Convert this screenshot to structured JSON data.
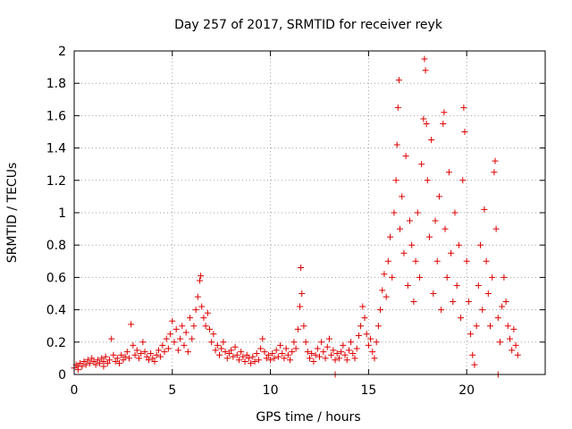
{
  "chart_data": {
    "type": "scatter",
    "title": "Day 257 of 2017, SRMTID for receiver reyk",
    "xlabel": "GPS time / hours",
    "ylabel": "SRMTID / TECUs",
    "xlim": [
      0,
      24
    ],
    "ylim": [
      0,
      2
    ],
    "xticks": [
      0,
      5,
      10,
      15,
      20
    ],
    "xtick_labels": [
      "0",
      "5",
      "10",
      "15",
      "20"
    ],
    "yticks": [
      0,
      0.2,
      0.4,
      0.6,
      0.8,
      1,
      1.2,
      1.4,
      1.6,
      1.8,
      2
    ],
    "ytick_labels": [
      "0",
      "0.2",
      "0.4",
      "0.6",
      "0.8",
      "1",
      "1.2",
      "1.4",
      "1.6",
      "1.8",
      "2"
    ],
    "grid": true,
    "marker": "+",
    "series_color": "#dd0000",
    "series": [
      {
        "name": "SRMTID",
        "points": [
          [
            0.0,
            0.04
          ],
          [
            0.1,
            0.06
          ],
          [
            0.2,
            0.05
          ],
          [
            0.3,
            0.07
          ],
          [
            0.4,
            0.05
          ],
          [
            0.5,
            0.08
          ],
          [
            0.6,
            0.06
          ],
          [
            0.7,
            0.09
          ],
          [
            0.8,
            0.07
          ],
          [
            0.9,
            0.1
          ],
          [
            1.0,
            0.08
          ],
          [
            1.1,
            0.06
          ],
          [
            1.2,
            0.09
          ],
          [
            1.3,
            0.07
          ],
          [
            1.4,
            0.1
          ],
          [
            1.5,
            0.08
          ],
          [
            1.6,
            0.11
          ],
          [
            1.7,
            0.07
          ],
          [
            1.8,
            0.09
          ],
          [
            1.9,
            0.22
          ],
          [
            2.0,
            0.12
          ],
          [
            2.1,
            0.08
          ],
          [
            2.2,
            0.1
          ],
          [
            2.3,
            0.07
          ],
          [
            2.4,
            0.12
          ],
          [
            2.5,
            0.09
          ],
          [
            2.6,
            0.11
          ],
          [
            2.7,
            0.14
          ],
          [
            2.8,
            0.1
          ],
          [
            2.9,
            0.31
          ],
          [
            3.0,
            0.18
          ],
          [
            3.1,
            0.12
          ],
          [
            3.2,
            0.15
          ],
          [
            3.3,
            0.1
          ],
          [
            3.4,
            0.13
          ],
          [
            3.5,
            0.2
          ],
          [
            3.6,
            0.14
          ],
          [
            3.7,
            0.11
          ],
          [
            3.8,
            0.09
          ],
          [
            3.9,
            0.13
          ],
          [
            4.0,
            0.1
          ],
          [
            4.1,
            0.08
          ],
          [
            4.2,
            0.12
          ],
          [
            4.3,
            0.15
          ],
          [
            4.4,
            0.11
          ],
          [
            4.5,
            0.18
          ],
          [
            4.6,
            0.14
          ],
          [
            4.7,
            0.22
          ],
          [
            4.8,
            0.16
          ],
          [
            4.9,
            0.25
          ],
          [
            5.0,
            0.33
          ],
          [
            5.1,
            0.2
          ],
          [
            5.2,
            0.28
          ],
          [
            5.3,
            0.15
          ],
          [
            5.4,
            0.22
          ],
          [
            5.5,
            0.3
          ],
          [
            5.6,
            0.18
          ],
          [
            5.7,
            0.26
          ],
          [
            5.8,
            0.14
          ],
          [
            5.9,
            0.35
          ],
          [
            6.0,
            0.22
          ],
          [
            6.1,
            0.3
          ],
          [
            6.2,
            0.4
          ],
          [
            6.3,
            0.48
          ],
          [
            6.4,
            0.58
          ],
          [
            6.45,
            0.61
          ],
          [
            6.5,
            0.42
          ],
          [
            6.6,
            0.35
          ],
          [
            6.7,
            0.3
          ],
          [
            6.8,
            0.38
          ],
          [
            6.9,
            0.28
          ],
          [
            7.0,
            0.2
          ],
          [
            7.1,
            0.25
          ],
          [
            7.2,
            0.15
          ],
          [
            7.3,
            0.18
          ],
          [
            7.4,
            0.12
          ],
          [
            7.5,
            0.16
          ],
          [
            7.6,
            0.2
          ],
          [
            7.7,
            0.14
          ],
          [
            7.8,
            0.1
          ],
          [
            7.9,
            0.13
          ],
          [
            8.0,
            0.15
          ],
          [
            8.1,
            0.11
          ],
          [
            8.2,
            0.17
          ],
          [
            8.3,
            0.12
          ],
          [
            8.4,
            0.09
          ],
          [
            8.5,
            0.14
          ],
          [
            8.6,
            0.11
          ],
          [
            8.7,
            0.08
          ],
          [
            8.8,
            0.12
          ],
          [
            8.9,
            0.1
          ],
          [
            9.0,
            0.07
          ],
          [
            9.1,
            0.11
          ],
          [
            9.2,
            0.08
          ],
          [
            9.3,
            0.13
          ],
          [
            9.4,
            0.09
          ],
          [
            9.5,
            0.16
          ],
          [
            9.6,
            0.22
          ],
          [
            9.7,
            0.14
          ],
          [
            9.8,
            0.1
          ],
          [
            9.9,
            0.12
          ],
          [
            10.0,
            0.09
          ],
          [
            10.1,
            0.13
          ],
          [
            10.2,
            0.1
          ],
          [
            10.3,
            0.15
          ],
          [
            10.4,
            0.11
          ],
          [
            10.5,
            0.18
          ],
          [
            10.6,
            0.13
          ],
          [
            10.7,
            0.1
          ],
          [
            10.8,
            0.16
          ],
          [
            10.9,
            0.12
          ],
          [
            11.0,
            0.09
          ],
          [
            11.1,
            0.14
          ],
          [
            11.2,
            0.2
          ],
          [
            11.3,
            0.16
          ],
          [
            11.4,
            0.28
          ],
          [
            11.5,
            0.42
          ],
          [
            11.55,
            0.66
          ],
          [
            11.6,
            0.5
          ],
          [
            11.7,
            0.3
          ],
          [
            11.8,
            0.2
          ],
          [
            11.9,
            0.14
          ],
          [
            12.0,
            0.1
          ],
          [
            12.1,
            0.13
          ],
          [
            12.2,
            0.08
          ],
          [
            12.3,
            0.12
          ],
          [
            12.4,
            0.16
          ],
          [
            12.5,
            0.11
          ],
          [
            12.6,
            0.2
          ],
          [
            12.7,
            0.14
          ],
          [
            12.8,
            0.1
          ],
          [
            12.9,
            0.17
          ],
          [
            13.0,
            0.22
          ],
          [
            13.1,
            0.12
          ],
          [
            13.2,
            0.15
          ],
          [
            13.3,
            0.09
          ],
          [
            13.4,
            0.13
          ],
          [
            13.5,
            0.1
          ],
          [
            13.6,
            0.14
          ],
          [
            13.7,
            0.18
          ],
          [
            13.8,
            0.12
          ],
          [
            13.9,
            0.09
          ],
          [
            14.0,
            0.15
          ],
          [
            14.1,
            0.2
          ],
          [
            14.2,
            0.13
          ],
          [
            14.3,
            0.1
          ],
          [
            14.4,
            0.16
          ],
          [
            14.5,
            0.24
          ],
          [
            14.6,
            0.3
          ],
          [
            14.7,
            0.42
          ],
          [
            14.8,
            0.35
          ],
          [
            14.9,
            0.25
          ],
          [
            15.0,
            0.18
          ],
          [
            15.1,
            0.22
          ],
          [
            15.2,
            0.14
          ],
          [
            15.3,
            0.1
          ],
          [
            15.4,
            0.2
          ],
          [
            15.5,
            0.3
          ],
          [
            15.6,
            0.4
          ],
          [
            15.7,
            0.52
          ],
          [
            15.8,
            0.62
          ],
          [
            15.9,
            0.48
          ],
          [
            16.0,
            0.7
          ],
          [
            16.1,
            0.85
          ],
          [
            16.2,
            0.6
          ],
          [
            16.3,
            1.0
          ],
          [
            16.4,
            1.2
          ],
          [
            16.45,
            1.42
          ],
          [
            16.5,
            1.65
          ],
          [
            16.55,
            1.82
          ],
          [
            16.6,
            0.9
          ],
          [
            16.7,
            1.1
          ],
          [
            16.8,
            0.75
          ],
          [
            16.9,
            1.35
          ],
          [
            17.0,
            0.55
          ],
          [
            17.1,
            0.95
          ],
          [
            17.2,
            0.8
          ],
          [
            17.3,
            0.45
          ],
          [
            17.4,
            0.7
          ],
          [
            17.5,
            1.0
          ],
          [
            17.6,
            0.6
          ],
          [
            17.7,
            1.3
          ],
          [
            17.8,
            1.58
          ],
          [
            17.85,
            1.95
          ],
          [
            17.9,
            1.88
          ],
          [
            17.95,
            1.55
          ],
          [
            18.0,
            1.2
          ],
          [
            18.1,
            0.85
          ],
          [
            18.2,
            1.45
          ],
          [
            18.3,
            0.5
          ],
          [
            18.4,
            0.95
          ],
          [
            18.5,
            0.7
          ],
          [
            18.6,
            1.1
          ],
          [
            18.7,
            0.4
          ],
          [
            18.8,
            1.55
          ],
          [
            18.85,
            1.62
          ],
          [
            18.9,
            0.9
          ],
          [
            19.0,
            0.6
          ],
          [
            19.1,
            1.25
          ],
          [
            19.2,
            0.75
          ],
          [
            19.3,
            0.45
          ],
          [
            19.4,
            1.0
          ],
          [
            19.5,
            0.55
          ],
          [
            19.6,
            0.8
          ],
          [
            19.7,
            0.35
          ],
          [
            19.8,
            1.2
          ],
          [
            19.85,
            1.65
          ],
          [
            19.9,
            1.5
          ],
          [
            20.0,
            0.7
          ],
          [
            20.1,
            0.45
          ],
          [
            20.2,
            0.25
          ],
          [
            20.3,
            0.12
          ],
          [
            20.4,
            0.06
          ],
          [
            20.5,
            0.3
          ],
          [
            20.6,
            0.55
          ],
          [
            20.7,
            0.8
          ],
          [
            20.8,
            0.4
          ],
          [
            20.9,
            1.02
          ],
          [
            21.0,
            0.7
          ],
          [
            21.1,
            0.5
          ],
          [
            21.2,
            0.3
          ],
          [
            21.3,
            0.6
          ],
          [
            21.4,
            1.25
          ],
          [
            21.45,
            1.32
          ],
          [
            21.5,
            0.9
          ],
          [
            21.6,
            0.35
          ],
          [
            21.7,
            0.2
          ],
          [
            21.8,
            0.42
          ],
          [
            21.9,
            0.6
          ],
          [
            22.0,
            0.45
          ],
          [
            22.1,
            0.3
          ],
          [
            22.2,
            0.22
          ],
          [
            22.3,
            0.15
          ],
          [
            22.4,
            0.28
          ],
          [
            22.5,
            0.18
          ],
          [
            22.6,
            0.12
          ],
          [
            13.3,
            0.0
          ],
          [
            21.6,
            0.0
          ],
          [
            0.2,
            0.03
          ],
          [
            1.5,
            0.05
          ]
        ]
      }
    ]
  }
}
